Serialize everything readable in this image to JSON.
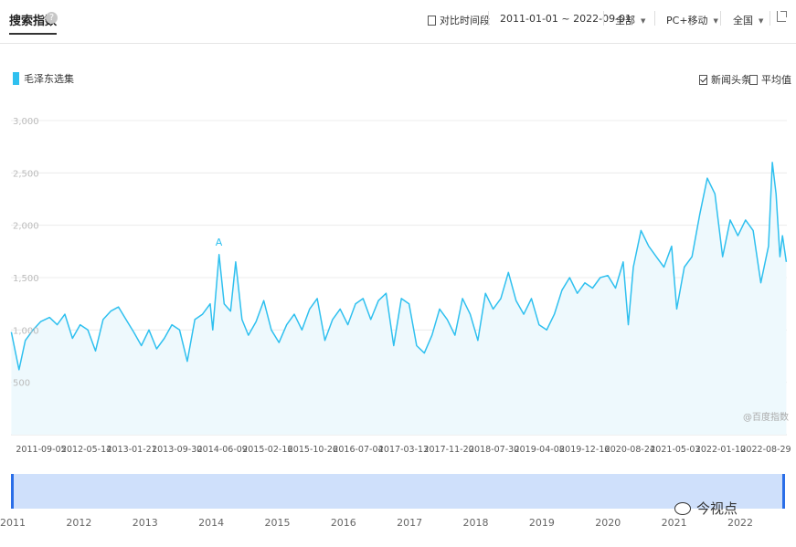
{
  "header": {
    "tab_title": "搜索指数",
    "help_icon_glyph": "?",
    "compare_label": "对比时间段",
    "date_range": "2011-01-01 ~ 2022-09-01",
    "region_all": "全部",
    "device": "PC+移动",
    "scope": "全国"
  },
  "legend": {
    "series_name": "毛泽东选集",
    "color": "#2fc0ef"
  },
  "options": {
    "news_label": "新闻头条",
    "avg_label": "平均值"
  },
  "watermark": "@百度指数",
  "annotation": {
    "label": "A",
    "date": "2014-02-17",
    "value": 1720
  },
  "bottom": {
    "years": [
      "2011",
      "2012",
      "2013",
      "2014",
      "2015",
      "2016",
      "2017",
      "2018",
      "2019",
      "2020",
      "2021",
      "2022"
    ],
    "wechat_label": "今视点"
  },
  "chart_data": {
    "type": "area",
    "series_name": "毛泽东选集",
    "color": "#2fc0ef",
    "fill_color": "#eef9fd",
    "x_tick_labels": [
      "2011-09-05",
      "2012-05-14",
      "2013-01-21",
      "2013-09-30",
      "2014-06-09",
      "2015-02-16",
      "2015-10-26",
      "2016-07-04",
      "2017-03-13",
      "2017-11-20",
      "2018-07-30",
      "2019-04-08",
      "2019-12-16",
      "2020-08-24",
      "2021-05-03",
      "2022-01-10",
      "2022-08-29"
    ],
    "y_tick_labels": [
      "500",
      "1,000",
      "1,500",
      "2,000",
      "2,500",
      "3,000"
    ],
    "y_ticks": [
      500,
      1000,
      1500,
      2000,
      2500,
      3000
    ],
    "ylim": [
      0,
      3000
    ],
    "xlim": [
      "2011-01-01",
      "2022-09-01"
    ],
    "grid": true,
    "points": [
      [
        "2011-01-03",
        980
      ],
      [
        "2011-02-14",
        620
      ],
      [
        "2011-03-21",
        900
      ],
      [
        "2011-05-02",
        1000
      ],
      [
        "2011-06-13",
        1080
      ],
      [
        "2011-08-01",
        1120
      ],
      [
        "2011-09-12",
        1050
      ],
      [
        "2011-10-24",
        1150
      ],
      [
        "2011-12-05",
        920
      ],
      [
        "2012-01-16",
        1050
      ],
      [
        "2012-02-27",
        1000
      ],
      [
        "2012-04-09",
        800
      ],
      [
        "2012-05-21",
        1100
      ],
      [
        "2012-07-02",
        1180
      ],
      [
        "2012-08-13",
        1220
      ],
      [
        "2012-09-24",
        1100
      ],
      [
        "2012-11-05",
        980
      ],
      [
        "2012-12-17",
        850
      ],
      [
        "2013-01-28",
        1000
      ],
      [
        "2013-03-11",
        820
      ],
      [
        "2013-04-22",
        920
      ],
      [
        "2013-06-03",
        1050
      ],
      [
        "2013-07-15",
        1000
      ],
      [
        "2013-08-26",
        700
      ],
      [
        "2013-10-07",
        1100
      ],
      [
        "2013-11-18",
        1150
      ],
      [
        "2013-12-30",
        1250
      ],
      [
        "2014-01-13",
        1000
      ],
      [
        "2014-02-17",
        1720
      ],
      [
        "2014-03-17",
        1250
      ],
      [
        "2014-04-21",
        1180
      ],
      [
        "2014-05-19",
        1650
      ],
      [
        "2014-06-23",
        1100
      ],
      [
        "2014-07-28",
        950
      ],
      [
        "2014-09-08",
        1080
      ],
      [
        "2014-10-20",
        1280
      ],
      [
        "2014-12-01",
        1000
      ],
      [
        "2015-01-12",
        880
      ],
      [
        "2015-02-23",
        1050
      ],
      [
        "2015-04-06",
        1150
      ],
      [
        "2015-05-18",
        1000
      ],
      [
        "2015-06-29",
        1200
      ],
      [
        "2015-08-10",
        1300
      ],
      [
        "2015-09-21",
        900
      ],
      [
        "2015-11-02",
        1100
      ],
      [
        "2015-12-14",
        1200
      ],
      [
        "2016-01-25",
        1050
      ],
      [
        "2016-03-07",
        1250
      ],
      [
        "2016-04-18",
        1300
      ],
      [
        "2016-05-30",
        1100
      ],
      [
        "2016-07-11",
        1280
      ],
      [
        "2016-08-22",
        1350
      ],
      [
        "2016-10-03",
        850
      ],
      [
        "2016-11-14",
        1300
      ],
      [
        "2016-12-26",
        1250
      ],
      [
        "2017-02-06",
        850
      ],
      [
        "2017-03-20",
        780
      ],
      [
        "2017-05-01",
        950
      ],
      [
        "2017-06-12",
        1200
      ],
      [
        "2017-07-24",
        1100
      ],
      [
        "2017-09-04",
        950
      ],
      [
        "2017-10-16",
        1300
      ],
      [
        "2017-11-27",
        1150
      ],
      [
        "2018-01-08",
        900
      ],
      [
        "2018-02-19",
        1350
      ],
      [
        "2018-04-02",
        1200
      ],
      [
        "2018-05-14",
        1300
      ],
      [
        "2018-06-25",
        1550
      ],
      [
        "2018-08-06",
        1280
      ],
      [
        "2018-09-17",
        1150
      ],
      [
        "2018-10-29",
        1300
      ],
      [
        "2018-12-10",
        1050
      ],
      [
        "2019-01-21",
        1000
      ],
      [
        "2019-03-04",
        1150
      ],
      [
        "2019-04-15",
        1380
      ],
      [
        "2019-05-27",
        1500
      ],
      [
        "2019-07-08",
        1350
      ],
      [
        "2019-08-19",
        1450
      ],
      [
        "2019-09-30",
        1400
      ],
      [
        "2019-11-11",
        1500
      ],
      [
        "2019-12-23",
        1520
      ],
      [
        "2020-02-03",
        1400
      ],
      [
        "2020-03-16",
        1650
      ],
      [
        "2020-04-13",
        1050
      ],
      [
        "2020-05-11",
        1600
      ],
      [
        "2020-06-22",
        1950
      ],
      [
        "2020-08-03",
        1800
      ],
      [
        "2020-09-14",
        1700
      ],
      [
        "2020-10-26",
        1600
      ],
      [
        "2020-12-07",
        1800
      ],
      [
        "2021-01-04",
        1200
      ],
      [
        "2021-02-15",
        1600
      ],
      [
        "2021-03-29",
        1700
      ],
      [
        "2021-05-10",
        2100
      ],
      [
        "2021-06-21",
        2450
      ],
      [
        "2021-08-02",
        2300
      ],
      [
        "2021-09-13",
        1700
      ],
      [
        "2021-10-25",
        2050
      ],
      [
        "2021-12-06",
        1900
      ],
      [
        "2022-01-17",
        2050
      ],
      [
        "2022-02-28",
        1950
      ],
      [
        "2022-04-11",
        1450
      ],
      [
        "2022-05-23",
        1800
      ],
      [
        "2022-06-13",
        2600
      ],
      [
        "2022-07-04",
        2300
      ],
      [
        "2022-07-25",
        1700
      ],
      [
        "2022-08-08",
        1900
      ],
      [
        "2022-08-29",
        1650
      ]
    ]
  }
}
